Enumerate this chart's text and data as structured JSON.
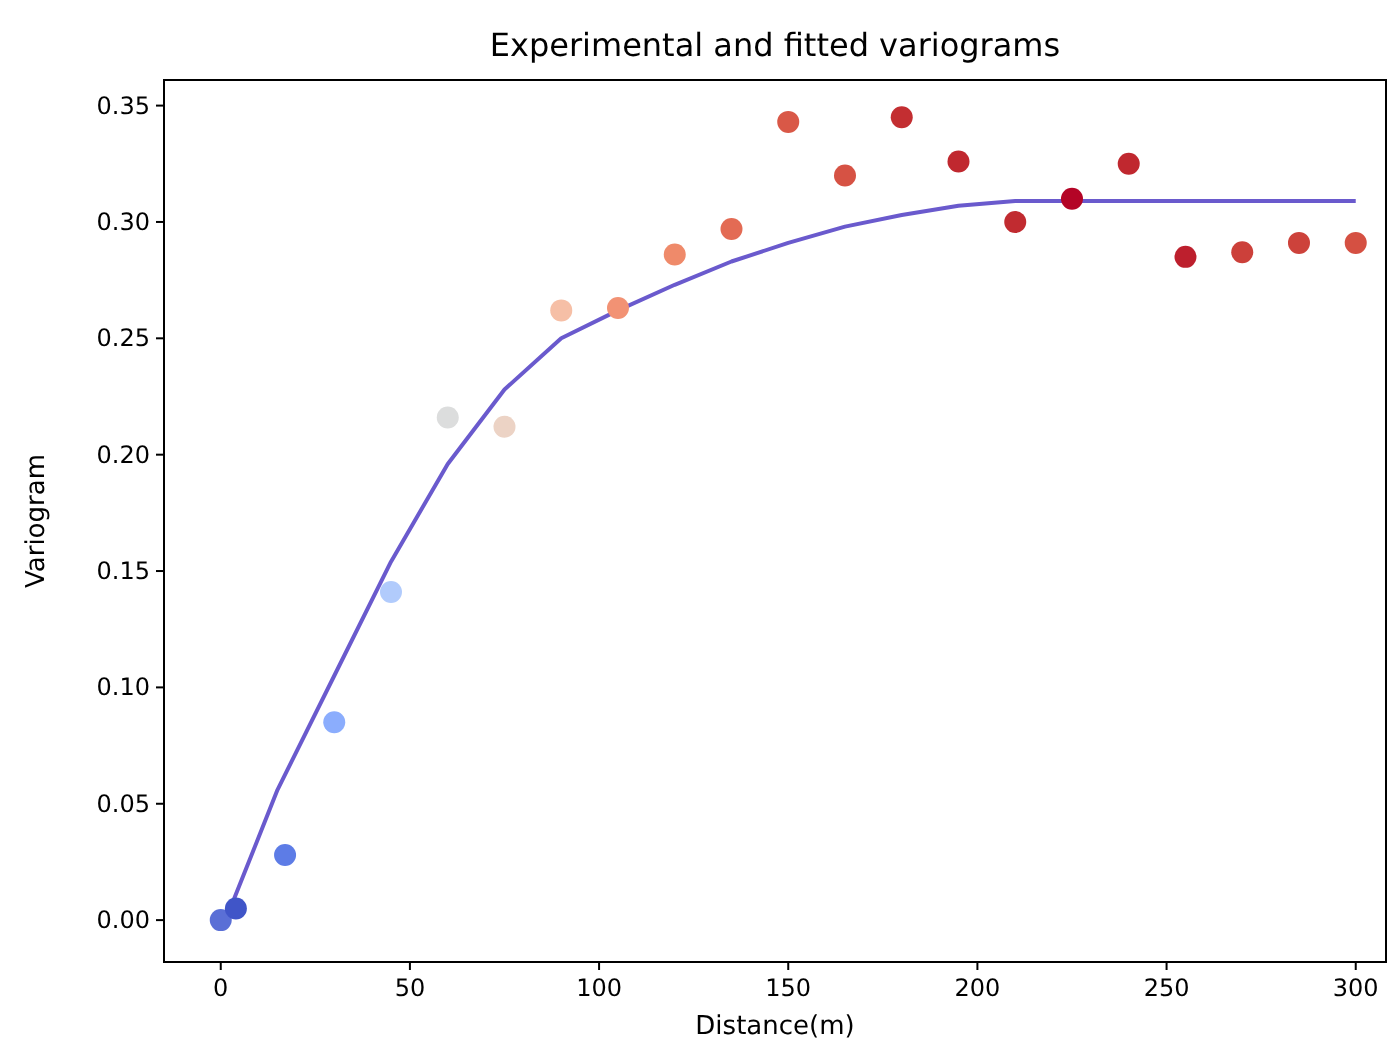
{
  "chart_data": {
    "type": "scatter",
    "title": "Experimental and fitted variograms",
    "xlabel": "Distance(m)",
    "ylabel": "Variogram",
    "xlim": [
      -15,
      308
    ],
    "xticks": [
      0,
      50,
      100,
      150,
      200,
      250,
      300
    ],
    "ylim": [
      -0.018,
      0.361
    ],
    "yticks": [
      {
        "value": 0,
        "label": "0.00"
      },
      {
        "value": 0.05,
        "label": "0.05"
      },
      {
        "value": 0.1,
        "label": "0.10"
      },
      {
        "value": 0.15,
        "label": "0.15"
      },
      {
        "value": 0.2,
        "label": "0.20"
      },
      {
        "value": 0.25,
        "label": "0.25"
      },
      {
        "value": 0.3,
        "label": "0.30"
      },
      {
        "value": 0.35,
        "label": "0.35"
      }
    ],
    "grid": false,
    "series": [
      {
        "type": "line",
        "color": "#6a5acd",
        "marker": "none",
        "line_style": "solid",
        "x": [
          3,
          15,
          30,
          45,
          60,
          75,
          90,
          105,
          120,
          135,
          150,
          165,
          180,
          195,
          210,
          225,
          240,
          255,
          270,
          285,
          300
        ],
        "values": [
          0.007,
          0.056,
          0.105,
          0.154,
          0.196,
          0.228,
          0.25,
          0.262,
          0.273,
          0.283,
          0.291,
          0.298,
          0.303,
          0.307,
          0.309,
          0.309,
          0.309,
          0.309,
          0.309,
          0.309,
          0.309
        ]
      },
      {
        "marker": "circle",
        "x": [
          0,
          4,
          17,
          30,
          45,
          60,
          75,
          90,
          105,
          120,
          135,
          150,
          165,
          180,
          195,
          210,
          225,
          240,
          255,
          270,
          285,
          300
        ],
        "values": [
          0,
          0.005,
          0.028,
          0.085,
          0.141,
          0.216,
          0.212,
          0.262,
          0.263,
          0.286,
          0.297,
          0.343,
          0.32,
          0.345,
          0.326,
          0.3,
          0.31,
          0.325,
          0.285,
          0.287,
          0.291,
          0.291
        ],
        "colors": [
          "#5a6fd6",
          "#4055c8",
          "#5d7ce6",
          "#8badfd",
          "#b1cbfc",
          "#dcdddd",
          "#ecd3c5",
          "#f6bfa6",
          "#f29274",
          "#ef8a6a",
          "#e36b54",
          "#d95847",
          "#d65244",
          "#c32e31",
          "#c0282f",
          "#c12b30",
          "#b40426",
          "#c0282f",
          "#bd1f2d",
          "#cc403a",
          "#cd423b",
          "#d55042"
        ]
      }
    ]
  }
}
